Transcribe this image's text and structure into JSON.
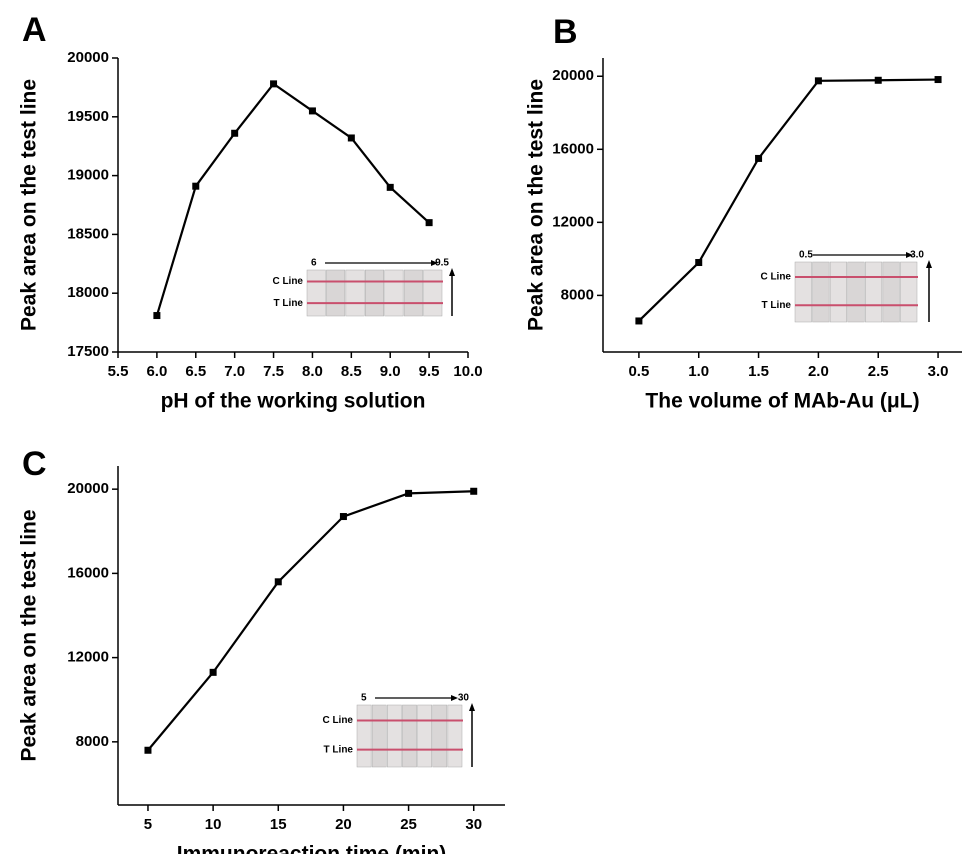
{
  "chart_data": [
    {
      "type": "line",
      "panel_label": "A",
      "xlabel": "pH of the working solution",
      "ylabel": "Peak area on the test line",
      "x": [
        6.0,
        6.5,
        7.0,
        7.5,
        8.0,
        8.5,
        9.0,
        9.5
      ],
      "values": [
        17810,
        18910,
        19360,
        19780,
        19550,
        19320,
        18900,
        18600
      ],
      "color": "#000000",
      "xlim": [
        5.5,
        10.0
      ],
      "xticks": [
        5.5,
        {
          "value": 6,
          "label": "6.0"
        },
        6.5,
        {
          "value": 7,
          "label": "7.0"
        },
        7.5,
        {
          "value": 8,
          "label": "8.0"
        },
        8.5,
        {
          "value": 9,
          "label": "9.0"
        },
        9.5,
        {
          "value": 10,
          "label": "10.0"
        }
      ],
      "ylim": [
        17500,
        20000
      ],
      "yticks": [
        17500,
        18000,
        18500,
        19000,
        19500,
        20000
      ],
      "inset": {
        "start": "6",
        "end": "9.5",
        "c_line": "C Line",
        "t_line": "T Line"
      }
    },
    {
      "type": "line",
      "panel_label": "B",
      "xlabel": "The volume of MAb-Au (μL)",
      "ylabel": "Peak area on the test line",
      "x": [
        0.5,
        1.0,
        1.5,
        2.0,
        2.5,
        3.0
      ],
      "values": [
        6600,
        9800,
        15500,
        19750,
        19780,
        19820
      ],
      "color": "#000000",
      "xlim": [
        0.2,
        3.2
      ],
      "xticks": [
        0.5,
        {
          "value": 1,
          "label": "1.0"
        },
        1.5,
        {
          "value": 2,
          "label": "2.0"
        },
        2.5,
        {
          "value": 3,
          "label": "3.0"
        }
      ],
      "ylim": [
        4900,
        21000
      ],
      "yticks": [
        8000,
        12000,
        16000,
        20000
      ],
      "inset": {
        "start": "0.5",
        "end": "3.0",
        "c_line": "C Line",
        "t_line": "T Line"
      }
    },
    {
      "type": "line",
      "panel_label": "C",
      "xlabel": "Immunoreaction time (min)",
      "ylabel": "Peak area on the test line",
      "x": [
        5,
        10,
        15,
        20,
        25,
        30
      ],
      "values": [
        7600,
        11300,
        15600,
        18700,
        19800,
        19900
      ],
      "color": "#000000",
      "xlim": [
        2.7,
        32.4
      ],
      "xticks": [
        5,
        10,
        15,
        20,
        25,
        30
      ],
      "ylim": [
        5000,
        21100
      ],
      "yticks": [
        8000,
        12000,
        16000,
        20000
      ],
      "inset": {
        "start": "5",
        "end": "30",
        "c_line": "C Line",
        "t_line": "T Line"
      }
    }
  ]
}
